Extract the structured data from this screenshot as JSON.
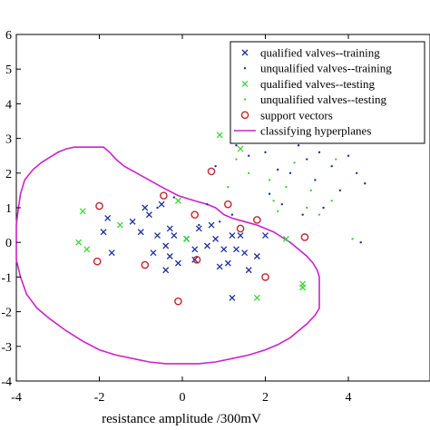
{
  "chart_data": {
    "type": "scatter",
    "xlabel": "resistance amplitude /300mV",
    "ylabel": "",
    "title": "",
    "xlim": [
      -4,
      6
    ],
    "ylim": [
      -4,
      6
    ],
    "x_ticks": [
      "-4",
      "-2",
      "0",
      "2",
      "4"
    ],
    "x_tick_values": [
      -4,
      -2,
      0,
      2,
      4
    ],
    "y_ticks": [
      "-4",
      "-3",
      "-2",
      "-1",
      "0",
      "1",
      "2",
      "3",
      "4",
      "5",
      "6"
    ],
    "y_tick_values": [
      -4,
      -3,
      -2,
      -1,
      0,
      1,
      2,
      3,
      4,
      5,
      6
    ],
    "grid": false,
    "legend_position": "top-right",
    "colors": {
      "blue": "#1f2f9e",
      "green": "#39d639",
      "red": "#c0262b",
      "magenta": "#cc22cc"
    },
    "series": [
      {
        "name": "qualified valves--training",
        "marker": "x",
        "color": "#1f2f9e",
        "points": [
          [
            -1.8,
            0.7
          ],
          [
            -1.9,
            0.3
          ],
          [
            -1.7,
            -0.3
          ],
          [
            -1.2,
            0.6
          ],
          [
            -1.0,
            0.3
          ],
          [
            -0.8,
            0.8
          ],
          [
            -0.9,
            1.0
          ],
          [
            -0.5,
            1.1
          ],
          [
            -0.6,
            0.2
          ],
          [
            -0.7,
            -0.3
          ],
          [
            -0.4,
            -0.1
          ],
          [
            -0.3,
            0.4
          ],
          [
            -0.2,
            0.2
          ],
          [
            -0.3,
            -0.4
          ],
          [
            -0.1,
            -0.6
          ],
          [
            0.1,
            0.1
          ],
          [
            0.3,
            -0.2
          ],
          [
            0.4,
            0.4
          ],
          [
            0.6,
            -0.1
          ],
          [
            0.7,
            0.5
          ],
          [
            0.8,
            0.1
          ],
          [
            1.0,
            -0.2
          ],
          [
            1.1,
            -0.6
          ],
          [
            1.2,
            0.2
          ],
          [
            1.3,
            -0.2
          ],
          [
            1.4,
            0.2
          ],
          [
            1.5,
            -0.3
          ],
          [
            1.6,
            -0.8
          ],
          [
            1.8,
            -0.4
          ],
          [
            2.0,
            0.2
          ],
          [
            1.2,
            -1.6
          ],
          [
            -0.4,
            -0.8
          ],
          [
            0.3,
            -0.5
          ],
          [
            0.9,
            -0.7
          ]
        ]
      },
      {
        "name": "unqualified valves--training",
        "marker": "dot",
        "color": "#1f2f9e",
        "points": [
          [
            -0.2,
            1.3
          ],
          [
            -0.6,
            1.0
          ],
          [
            0.6,
            1.1
          ],
          [
            0.9,
            0.6
          ],
          [
            1.2,
            0.8
          ],
          [
            0.8,
            2.2
          ],
          [
            1.3,
            2.8
          ],
          [
            1.6,
            2.5
          ],
          [
            2.0,
            2.6
          ],
          [
            2.3,
            2.1
          ],
          [
            2.6,
            2.0
          ],
          [
            2.8,
            2.8
          ],
          [
            3.0,
            2.4
          ],
          [
            3.2,
            1.8
          ],
          [
            3.4,
            1.0
          ],
          [
            3.6,
            2.2
          ],
          [
            3.8,
            1.5
          ],
          [
            4.0,
            2.5
          ],
          [
            4.2,
            2.0
          ],
          [
            4.3,
            0.0
          ],
          [
            4.4,
            1.7
          ],
          [
            2.4,
            1.1
          ],
          [
            2.1,
            1.4
          ],
          [
            2.9,
            0.8
          ],
          [
            3.3,
            2.6
          ],
          [
            0.4,
            0.5
          ]
        ]
      },
      {
        "name": "qualified valves--testing",
        "marker": "x",
        "color": "#39d639",
        "points": [
          [
            -2.4,
            0.9
          ],
          [
            -2.5,
            0.0
          ],
          [
            -2.3,
            -0.2
          ],
          [
            -0.1,
            1.2
          ],
          [
            0.1,
            0.1
          ],
          [
            0.9,
            3.1
          ],
          [
            1.4,
            2.7
          ],
          [
            2.5,
            0.1
          ],
          [
            2.9,
            -1.2
          ],
          [
            2.9,
            -1.3
          ],
          [
            1.8,
            -1.6
          ],
          [
            -1.5,
            0.5
          ]
        ]
      },
      {
        "name": "unqualified valves--testing",
        "marker": "dot",
        "color": "#39d639",
        "points": [
          [
            1.3,
            2.4
          ],
          [
            1.6,
            2.0
          ],
          [
            2.1,
            1.8
          ],
          [
            2.2,
            1.2
          ],
          [
            2.5,
            1.6
          ],
          [
            2.7,
            2.3
          ],
          [
            3.0,
            1.0
          ],
          [
            3.1,
            1.5
          ],
          [
            3.3,
            0.8
          ],
          [
            3.6,
            1.2
          ],
          [
            4.1,
            0.1
          ],
          [
            1.1,
            1.6
          ],
          [
            2.3,
            0.9
          ],
          [
            3.7,
            2.4
          ]
        ]
      },
      {
        "name": "support vectors",
        "marker": "circle",
        "color": "#c0262b",
        "points": [
          [
            -2.0,
            1.05
          ],
          [
            -2.05,
            -0.55
          ],
          [
            -0.45,
            1.35
          ],
          [
            -0.9,
            -0.65
          ],
          [
            0.3,
            0.8
          ],
          [
            0.35,
            -0.5
          ],
          [
            -0.1,
            -1.7
          ],
          [
            0.7,
            2.05
          ],
          [
            1.1,
            1.1
          ],
          [
            1.4,
            0.4
          ],
          [
            1.8,
            0.65
          ],
          [
            2.0,
            -1.0
          ],
          [
            2.95,
            0.15
          ]
        ]
      },
      {
        "name": "classifying hyperplanes",
        "marker": "line",
        "color": "#cc22cc",
        "path": [
          [
            -3.8,
            1.8
          ],
          [
            -3.6,
            2.1
          ],
          [
            -3.4,
            2.3
          ],
          [
            -3.2,
            2.45
          ],
          [
            -3.0,
            2.6
          ],
          [
            -2.8,
            2.7
          ],
          [
            -2.6,
            2.75
          ],
          [
            -2.2,
            2.75
          ],
          [
            -1.9,
            2.75
          ],
          [
            -1.75,
            2.6
          ],
          [
            -1.6,
            2.4
          ],
          [
            -1.4,
            2.2
          ],
          [
            -1.1,
            2.0
          ],
          [
            -0.8,
            1.8
          ],
          [
            -0.5,
            1.6
          ],
          [
            -0.1,
            1.35
          ],
          [
            0.3,
            1.2
          ],
          [
            0.6,
            1.1
          ],
          [
            0.8,
            1.0
          ],
          [
            1.0,
            0.8
          ],
          [
            1.2,
            0.7
          ],
          [
            1.5,
            0.6
          ],
          [
            1.8,
            0.5
          ],
          [
            2.0,
            0.4
          ],
          [
            2.2,
            0.3
          ],
          [
            2.4,
            0.15
          ],
          [
            2.6,
            0.0
          ],
          [
            2.8,
            -0.2
          ],
          [
            3.0,
            -0.4
          ],
          [
            3.15,
            -0.6
          ],
          [
            3.25,
            -0.8
          ],
          [
            3.3,
            -1.0
          ],
          [
            3.3,
            -1.3
          ],
          [
            3.3,
            -1.6
          ],
          [
            3.3,
            -1.9
          ],
          [
            3.2,
            -2.1
          ],
          [
            3.0,
            -2.35
          ],
          [
            2.8,
            -2.55
          ],
          [
            2.6,
            -2.75
          ],
          [
            2.3,
            -2.95
          ],
          [
            2.0,
            -3.1
          ],
          [
            1.6,
            -3.25
          ],
          [
            1.2,
            -3.35
          ],
          [
            0.8,
            -3.45
          ],
          [
            0.4,
            -3.5
          ],
          [
            0.0,
            -3.5
          ],
          [
            -0.4,
            -3.5
          ],
          [
            -0.8,
            -3.45
          ],
          [
            -1.2,
            -3.35
          ],
          [
            -1.6,
            -3.25
          ],
          [
            -2.0,
            -3.1
          ],
          [
            -2.4,
            -2.85
          ],
          [
            -2.8,
            -2.55
          ],
          [
            -3.2,
            -2.2
          ],
          [
            -3.5,
            -1.9
          ],
          [
            -3.75,
            -1.5
          ],
          [
            -3.9,
            -1.0
          ],
          [
            -4.0,
            -0.5
          ],
          [
            -4.0,
            0.0
          ],
          [
            -4.0,
            0.5
          ],
          [
            -3.95,
            1.0
          ],
          [
            -3.9,
            1.4
          ],
          [
            -3.8,
            1.8
          ]
        ]
      }
    ]
  }
}
